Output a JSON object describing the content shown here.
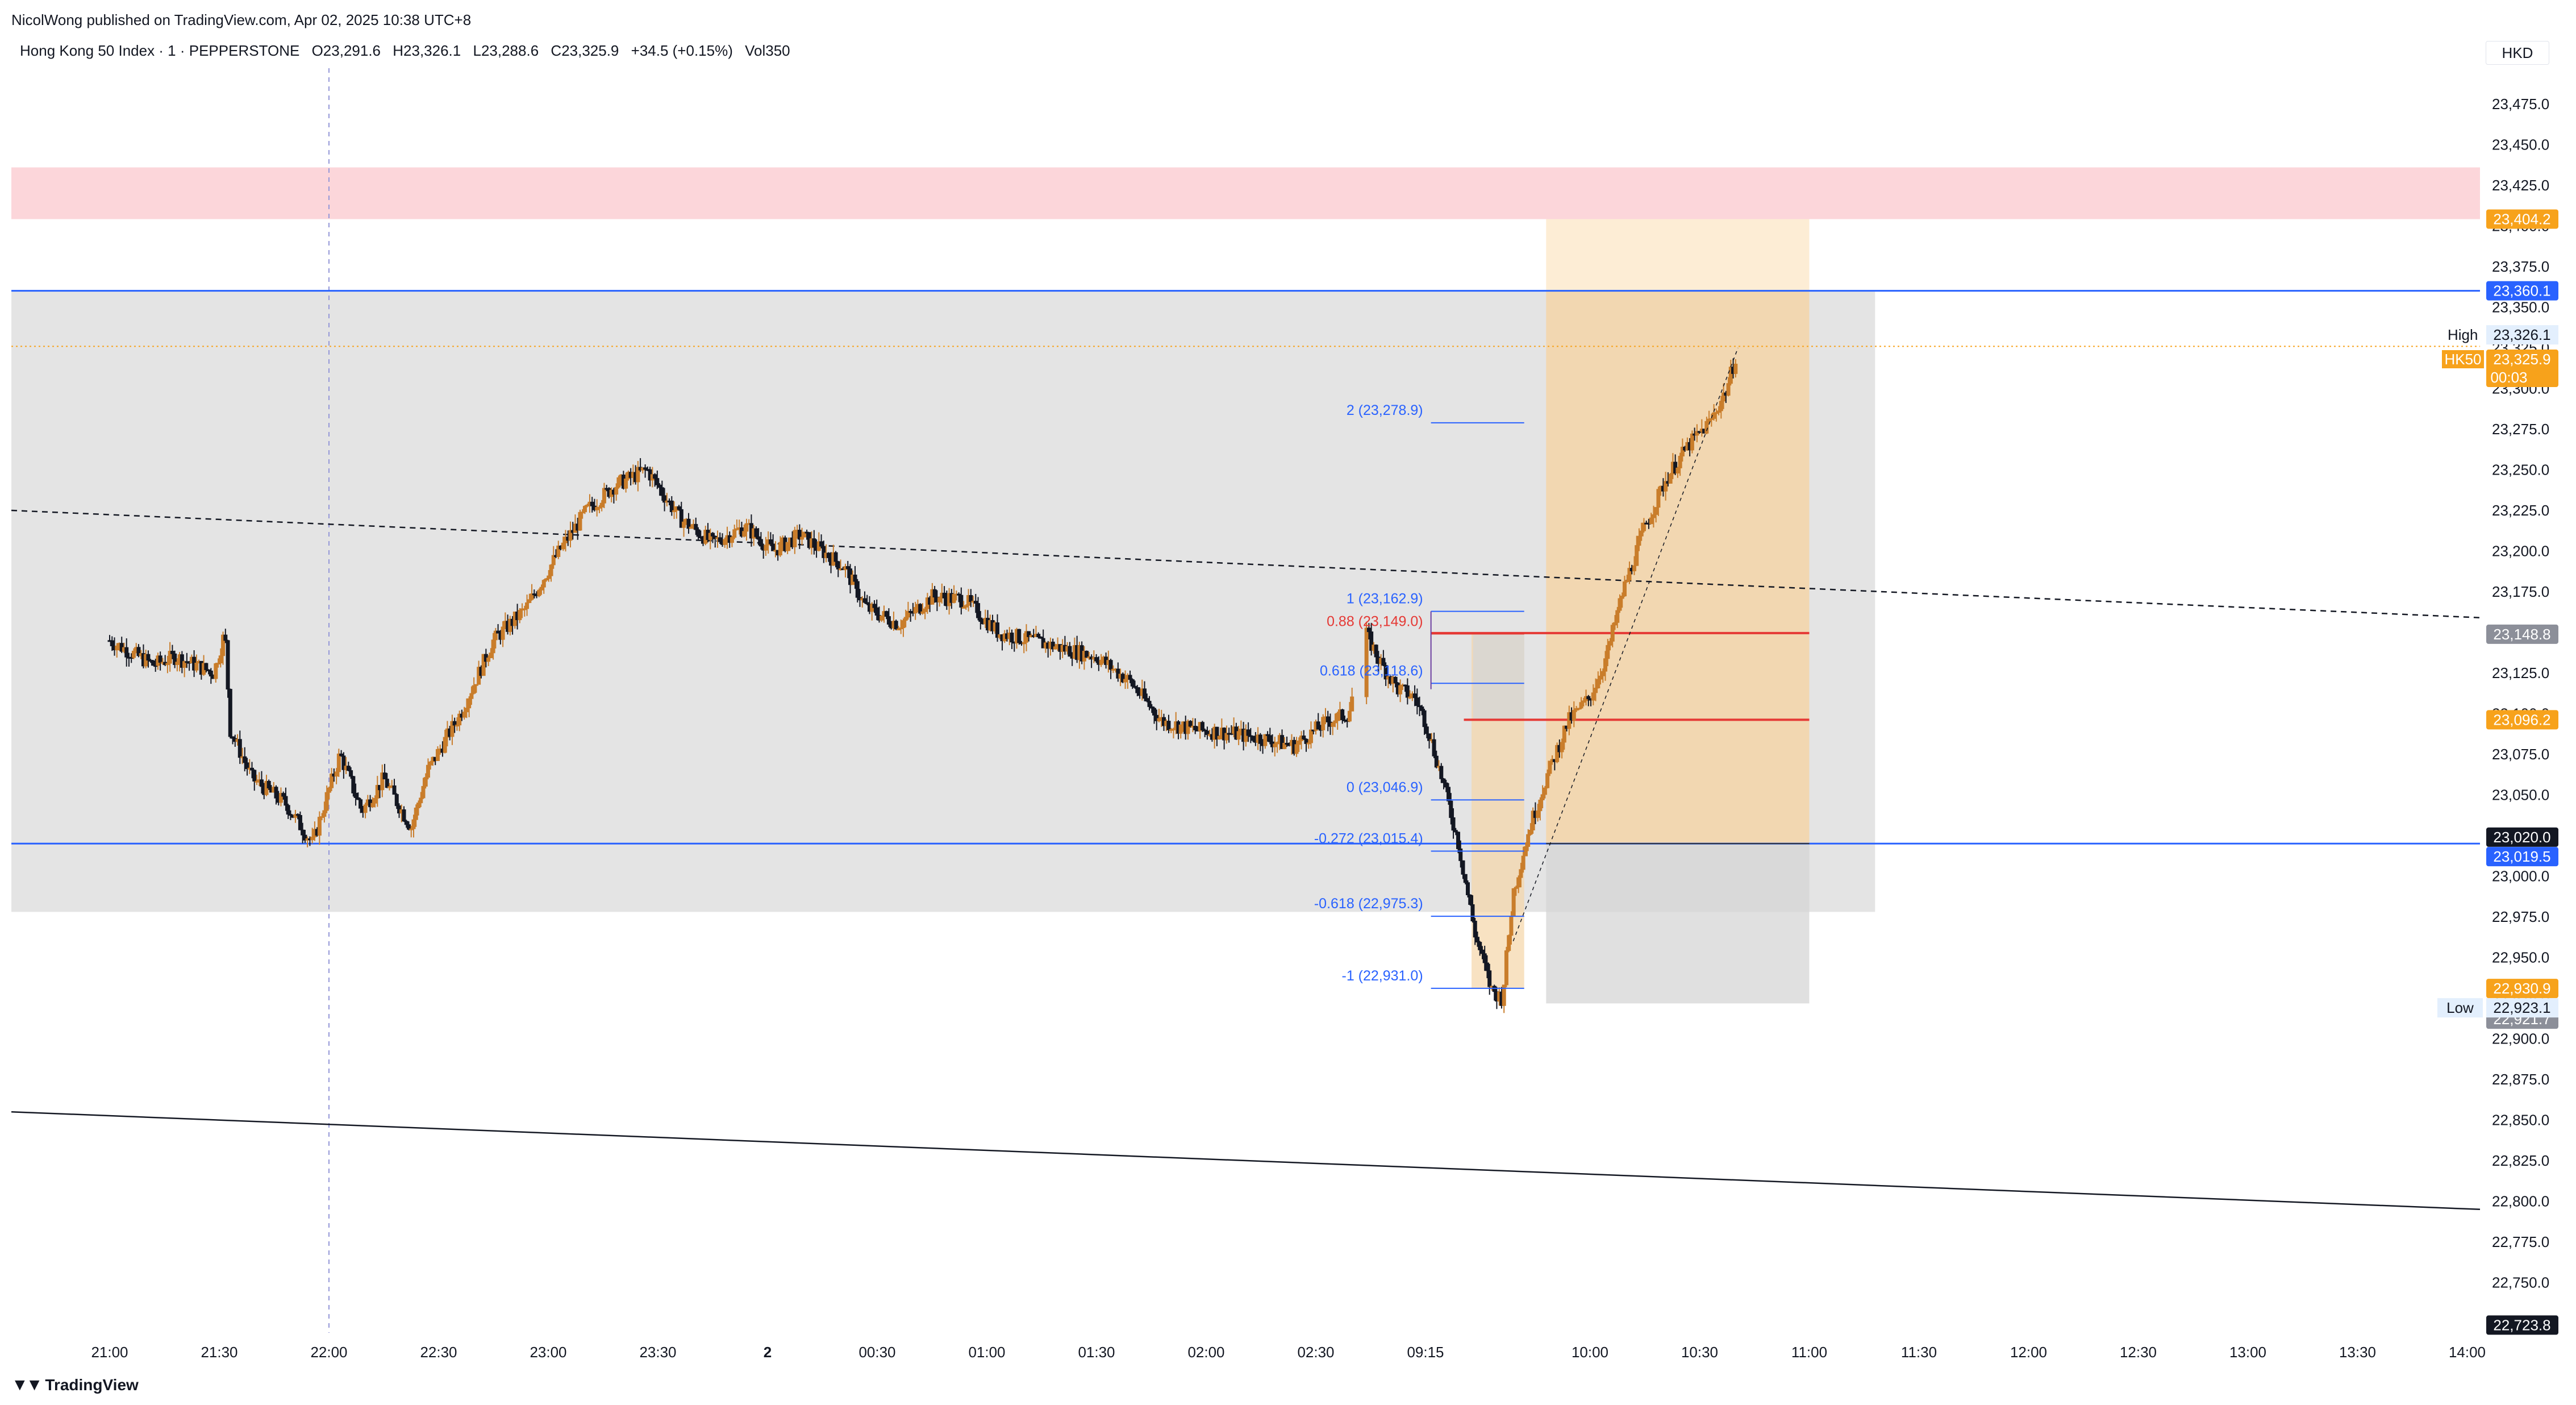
{
  "header": {
    "credit": "NicolWong published on TradingView.com, Apr 02, 2025 10:38 UTC+8",
    "symbol": "Hong Kong 50 Index · 1 · PEPPERSTONE",
    "ohlc": {
      "o_key": "O",
      "o": "23,291.6",
      "h_key": "H",
      "h": "23,326.1",
      "l_key": "L",
      "l": "23,288.6",
      "c_key": "C",
      "c": "23,325.9",
      "change": "+34.5 (+0.15%)",
      "vol_key": "Vol",
      "vol": "350"
    },
    "currency": "HKD"
  },
  "footer": {
    "brand": "TradingView",
    "logo_icon": "tradingview-logo-icon"
  },
  "colors": {
    "up": "#131722",
    "down": "#131722",
    "up_fill": "#ffffff",
    "down_fill": "#131722",
    "wick_up": "#c97d2b",
    "resistance_zone": "#fcd6da",
    "range_zone": "#e4e4e4",
    "position_profit": "#f5d5a8",
    "position_light": "#fdebd0",
    "position_loss": "#d6d6d6",
    "blue_line": "#2962ff",
    "red_line": "#e53935",
    "orange_badge": "#f7a21b",
    "blue_badge": "#2962ff"
  },
  "chart_data": {
    "type": "candlestick",
    "symbol": "HK50",
    "ylim": [
      22700,
      23500
    ],
    "y_ticks": [
      22725,
      22750,
      22775,
      22800,
      22825,
      22850,
      22875,
      22900,
      22925,
      22950,
      22975,
      23000,
      23025,
      23050,
      23075,
      23100,
      23125,
      23150,
      23175,
      23200,
      23225,
      23250,
      23275,
      23300,
      23325,
      23350,
      23375,
      23400,
      23425,
      23450,
      23475
    ],
    "y_tick_labels": [
      "22,725.0",
      "22,750.0",
      "22,775.0",
      "22,800.0",
      "22,825.0",
      "22,850.0",
      "22,875.0",
      "22,900.0",
      "22,925.0",
      "22,950.0",
      "22,975.0",
      "23,000.0",
      "23,025.0",
      "23,050.0",
      "23,075.0",
      "23,100.0",
      "23,125.0",
      "23,150.0",
      "23,175.0",
      "23,200.0",
      "23,225.0",
      "23,250.0",
      "23,275.0",
      "23,300.0",
      "23,325.0",
      "23,350.0",
      "23,375.0",
      "23,400.0",
      "23,425.0",
      "23,450.0",
      "23,475.0"
    ],
    "x_ticks": [
      "21:00",
      "21:30",
      "22:00",
      "22:30",
      "23:00",
      "23:30",
      "2",
      "00:30",
      "01:00",
      "01:30",
      "02:00",
      "02:30",
      "09:15",
      "10:00",
      "10:30",
      "11:00",
      "11:30",
      "12:00",
      "12:30",
      "13:00",
      "13:30",
      "14:00"
    ],
    "x_tick_index": [
      0,
      1,
      2,
      3,
      4,
      5,
      6,
      7,
      8,
      9,
      10,
      11,
      12,
      13.5,
      14.5,
      15.5,
      16.5,
      17.5,
      18.5,
      19.5,
      20.5,
      21.5
    ],
    "price_path": [
      [
        0,
        23145
      ],
      [
        0.4,
        23130
      ],
      [
        0.6,
        23135
      ],
      [
        0.95,
        23125
      ],
      [
        1.05,
        23150
      ],
      [
        1.1,
        23090
      ],
      [
        1.3,
        23060
      ],
      [
        1.6,
        23045
      ],
      [
        1.85,
        23020
      ],
      [
        2.1,
        23075
      ],
      [
        2.3,
        23040
      ],
      [
        2.5,
        23060
      ],
      [
        2.75,
        23030
      ],
      [
        2.9,
        23065
      ],
      [
        3.2,
        23100
      ],
      [
        3.5,
        23145
      ],
      [
        3.8,
        23165
      ],
      [
        4.1,
        23200
      ],
      [
        4.35,
        23225
      ],
      [
        4.6,
        23240
      ],
      [
        4.9,
        23250
      ],
      [
        5.2,
        23220
      ],
      [
        5.5,
        23205
      ],
      [
        5.8,
        23215
      ],
      [
        6.05,
        23200
      ],
      [
        6.3,
        23210
      ],
      [
        6.7,
        23190
      ],
      [
        6.9,
        23165
      ],
      [
        7.2,
        23155
      ],
      [
        7.5,
        23172
      ],
      [
        7.8,
        23170
      ],
      [
        8.1,
        23150
      ],
      [
        8.4,
        23145
      ],
      [
        8.7,
        23140
      ],
      [
        9.0,
        23135
      ],
      [
        9.3,
        23120
      ],
      [
        9.6,
        23095
      ],
      [
        9.9,
        23090
      ],
      [
        10.2,
        23088
      ],
      [
        10.5,
        23085
      ],
      [
        10.8,
        23080
      ],
      [
        11.1,
        23095
      ],
      [
        11.3,
        23100
      ],
      [
        11.45,
        23150
      ],
      [
        11.6,
        23130
      ],
      [
        11.75,
        23115
      ],
      [
        11.9,
        23110
      ],
      [
        12.0,
        23095
      ],
      [
        12.15,
        23060
      ],
      [
        12.3,
        23020
      ],
      [
        12.45,
        22965
      ],
      [
        12.6,
        22930
      ],
      [
        12.7,
        22925
      ],
      [
        12.8,
        22990
      ],
      [
        12.95,
        23030
      ],
      [
        13.1,
        23060
      ],
      [
        13.3,
        23095
      ],
      [
        13.5,
        23110
      ],
      [
        13.65,
        23135
      ],
      [
        13.8,
        23175
      ],
      [
        14.0,
        23215
      ],
      [
        14.2,
        23245
      ],
      [
        14.4,
        23265
      ],
      [
        14.6,
        23280
      ],
      [
        14.75,
        23300
      ],
      [
        14.85,
        23325
      ]
    ],
    "high": {
      "label": "High",
      "value": "23,326.1"
    },
    "low": {
      "label": "Low",
      "value": "22,923.1"
    },
    "last_price": {
      "tag": "HK50",
      "value": "23,325.9",
      "countdown": "00:03"
    },
    "price_badges": [
      {
        "value": "23,404.2",
        "style": "orange"
      },
      {
        "value": "23,360.1",
        "style": "blue"
      },
      {
        "value": "23,148.8",
        "style": "gray"
      },
      {
        "value": "23,096.2",
        "style": "orange"
      },
      {
        "value": "23,020.0",
        "style": "black"
      },
      {
        "value": "23,019.5",
        "style": "blue"
      },
      {
        "value": "22,930.9",
        "style": "orange"
      },
      {
        "value": "22,921.7",
        "style": "gray"
      },
      {
        "value": "22,723.8",
        "style": "black"
      }
    ],
    "horizontal_lines": [
      {
        "price": 23360.1,
        "color": "blue"
      },
      {
        "price": 23020.0,
        "color": "blue"
      }
    ],
    "zones": [
      {
        "name": "resistance-zone",
        "from_price": 23404.2,
        "to_price": 23436,
        "from_x": 0,
        "to_x": 21.9,
        "color": "resistance"
      },
      {
        "name": "range-zone",
        "from_price": 22978,
        "to_price": 23360.1,
        "from_x": 0,
        "to_x": 16.1,
        "color": "range"
      }
    ],
    "position": {
      "entry": 23020.0,
      "target": 23404.2,
      "stop": 22921.7,
      "from_x": 13.1,
      "to_x": 15.5,
      "entry_line_red": [
        23149.5,
        23096.2
      ]
    },
    "fib": {
      "from_x": 12.05,
      "to_x": 12.9,
      "levels": [
        {
          "label": "2 (23,278.9)",
          "price": 23278.9,
          "color": "blue"
        },
        {
          "label": "1 (23,162.9)",
          "price": 23162.9,
          "color": "blue"
        },
        {
          "label": "0.88 (23,149.0)",
          "price": 23149.0,
          "color": "red"
        },
        {
          "label": "0.618 (23,118.6)",
          "price": 23118.6,
          "color": "blue"
        },
        {
          "label": "0 (23,046.9)",
          "price": 23046.9,
          "color": "blue"
        },
        {
          "label": "-0.272 (23,015.4)",
          "price": 23015.4,
          "color": "blue"
        },
        {
          "label": "-0.618 (22,975.3)",
          "price": 22975.3,
          "color": "blue"
        },
        {
          "label": "-1 (22,931.0)",
          "price": 22931.0,
          "color": "blue"
        }
      ]
    },
    "trendlines": [
      {
        "name": "dashed-trendline",
        "x1": 0,
        "y1": 23225,
        "x2": 21.9,
        "y2": 23159,
        "style": "dashed"
      },
      {
        "name": "lower-trendline",
        "x1": 0,
        "y1": 22855,
        "x2": 21.9,
        "y2": 22795,
        "style": "solid"
      }
    ],
    "session_marker_x": 2.0
  }
}
